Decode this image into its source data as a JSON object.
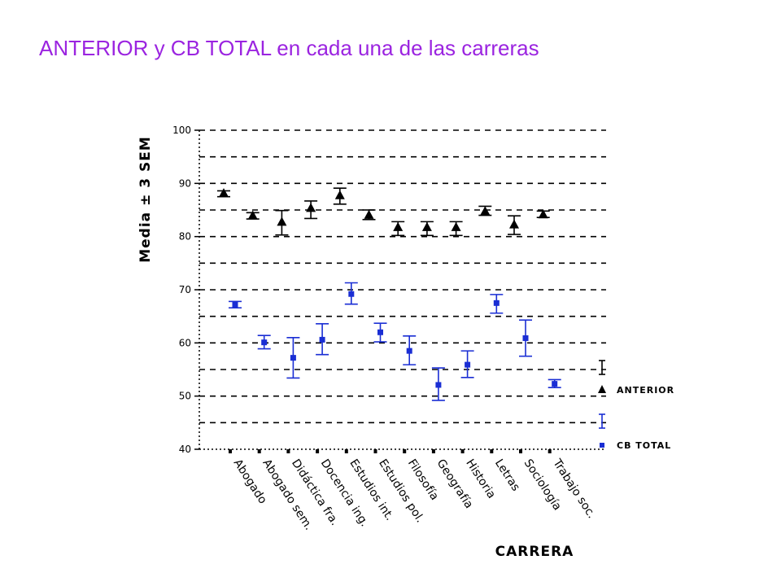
{
  "title": "ANTERIOR y CB TOTAL en cada una de las carreras",
  "chart_data": {
    "type": "scatter",
    "xlabel": "CARRERA",
    "ylabel": "Media ± 3 SEM",
    "ylim": [
      40,
      100
    ],
    "yticks": [
      40,
      50,
      60,
      70,
      80,
      90,
      100
    ],
    "grid": "dashed horizontal",
    "legend_position": "right",
    "categories": [
      "Abogado",
      "Abogado sem.",
      "Didáctica fra.",
      "Docencia ing.",
      "Estudios int.",
      "Estudios pol.",
      "Filosofía",
      "Geografía",
      "Historia",
      "Letras",
      "Sociología",
      "Trabajo soc."
    ],
    "series": [
      {
        "name": "ANTERIOR",
        "marker": "triangle",
        "color": "#000000",
        "values": [
          88.2,
          84.0,
          82.8,
          85.4,
          87.8,
          84.1,
          81.8,
          81.8,
          81.8,
          84.8,
          82.3,
          84.2
        ],
        "err_low": [
          87.5,
          83.3,
          80.3,
          83.4,
          86.1,
          83.2,
          80.2,
          80.2,
          80.2,
          84.0,
          80.4,
          83.6
        ],
        "err_high": [
          88.6,
          84.5,
          84.9,
          86.7,
          89.1,
          85.0,
          82.8,
          82.8,
          82.8,
          85.7,
          83.9,
          84.8
        ]
      },
      {
        "name": "CB TOTAL",
        "marker": "square",
        "color": "#1a2ed4",
        "values": [
          67.2,
          60.1,
          57.2,
          60.6,
          69.2,
          62.0,
          58.5,
          52.1,
          55.9,
          67.5,
          60.9,
          52.3
        ],
        "err_low": [
          66.6,
          58.9,
          53.4,
          57.8,
          67.3,
          60.2,
          55.9,
          49.2,
          53.5,
          65.6,
          57.5,
          51.6
        ],
        "err_high": [
          67.8,
          61.4,
          61.0,
          63.6,
          71.3,
          63.7,
          61.3,
          55.3,
          58.5,
          69.1,
          64.3,
          53.1
        ]
      }
    ]
  }
}
